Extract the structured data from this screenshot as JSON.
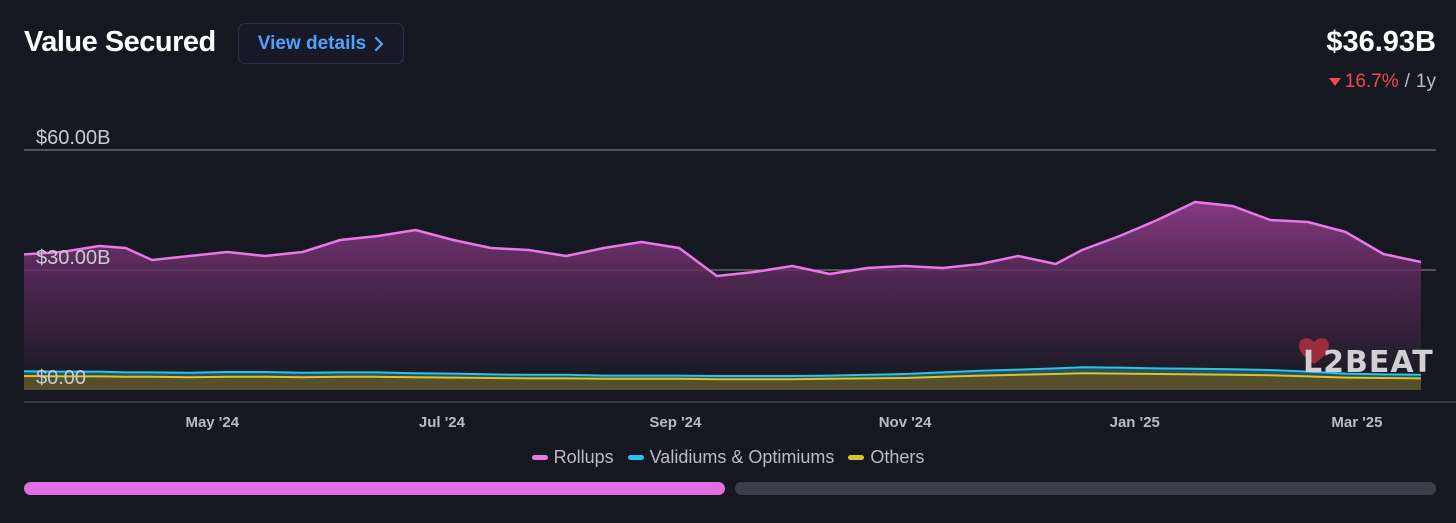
{
  "header": {
    "title": "Value Secured",
    "details_label": "View details",
    "value": "$36.93B",
    "change": "16.7%",
    "separator": "/",
    "period": "1y"
  },
  "colors": {
    "rollups": "#e877e8",
    "validiums": "#29c3ed",
    "others": "#d9c32e",
    "accent": "#4fa3ff",
    "negative": "#f0484b"
  },
  "watermark": "L2BEAT",
  "chart_data": {
    "type": "area",
    "stacked": true,
    "ylim": [
      0,
      60
    ],
    "y_ticks": [
      0,
      30,
      60
    ],
    "y_tick_labels": [
      "$0.00",
      "$30.00B",
      "$60.00B"
    ],
    "x_tick_labels": [
      "May '24",
      "Jul '24",
      "Sep '24",
      "Nov '24",
      "Jan '25",
      "Mar '25"
    ],
    "x": [
      "2024-03-12",
      "2024-03-22",
      "2024-04-01",
      "2024-04-08",
      "2024-04-15",
      "2024-04-25",
      "2024-05-05",
      "2024-05-15",
      "2024-05-25",
      "2024-06-04",
      "2024-06-14",
      "2024-06-24",
      "2024-07-04",
      "2024-07-14",
      "2024-07-24",
      "2024-08-03",
      "2024-08-13",
      "2024-08-23",
      "2024-09-02",
      "2024-09-12",
      "2024-09-22",
      "2024-10-02",
      "2024-10-12",
      "2024-10-22",
      "2024-11-01",
      "2024-11-11",
      "2024-11-21",
      "2024-12-01",
      "2024-12-11",
      "2024-12-18",
      "2024-12-28",
      "2025-01-07",
      "2025-01-17",
      "2025-01-27",
      "2025-02-06",
      "2025-02-16",
      "2025-02-26",
      "2025-03-08",
      "2025-03-18"
    ],
    "series": [
      {
        "name": "Rollups",
        "values": [
          33.9,
          34.5,
          36.0,
          35.5,
          32.5,
          33.5,
          34.5,
          33.5,
          34.5,
          37.5,
          38.5,
          40.0,
          37.5,
          35.5,
          35.0,
          33.5,
          35.5,
          37.0,
          35.5,
          28.5,
          29.5,
          31.0,
          29.0,
          30.5,
          31.0,
          30.5,
          31.5,
          33.5,
          31.5,
          35.0,
          38.5,
          42.5,
          47.0,
          46.0,
          42.5,
          42.0,
          39.5,
          34.0,
          32.0
        ]
      },
      {
        "name": "Validiums & Optimiums",
        "values": [
          1.2,
          1.2,
          1.2,
          1.1,
          1.1,
          1.1,
          1.2,
          1.2,
          1.1,
          1.1,
          1.1,
          1.0,
          1.0,
          0.9,
          0.9,
          0.9,
          0.8,
          0.8,
          0.8,
          0.8,
          0.8,
          0.8,
          0.8,
          0.9,
          1.0,
          1.1,
          1.2,
          1.3,
          1.4,
          1.5,
          1.5,
          1.4,
          1.4,
          1.4,
          1.3,
          1.2,
          1.0,
          0.9,
          0.9
        ]
      },
      {
        "name": "Others",
        "values": [
          3.5,
          3.4,
          3.4,
          3.3,
          3.3,
          3.2,
          3.3,
          3.3,
          3.2,
          3.3,
          3.3,
          3.2,
          3.1,
          3.0,
          2.9,
          2.9,
          2.8,
          2.8,
          2.8,
          2.7,
          2.7,
          2.7,
          2.8,
          2.9,
          3.0,
          3.3,
          3.6,
          3.8,
          4.0,
          4.2,
          4.1,
          4.0,
          3.9,
          3.8,
          3.7,
          3.4,
          3.1,
          3.0,
          2.9
        ]
      }
    ],
    "range_selector": {
      "start": 0,
      "end": 0.5
    }
  }
}
